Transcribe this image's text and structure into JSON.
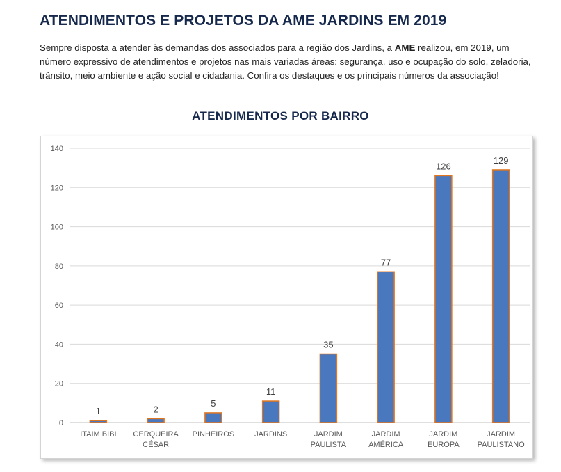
{
  "header": {
    "title": "ATENDIMENTOS E PROJETOS DA AME JARDINS EM 2019",
    "intro_before": "Sempre disposta a atender às demandas dos associados para a região dos Jardins, a ",
    "intro_brand": "AME",
    "intro_after": " realizou, em 2019, um número expressivo de atendimentos e projetos nas mais variadas áreas: segurança, uso e ocupação do solo, zeladoria, trânsito, meio ambiente e ação social e cidadania. Confira os destaques e os principais números da associação!"
  },
  "chart_data": {
    "type": "bar",
    "title": "ATENDIMENTOS POR BAIRRO",
    "categories": [
      [
        "ITAIM BIBI"
      ],
      [
        "CERQUEIRA",
        "CÉSAR"
      ],
      [
        "PINHEIROS"
      ],
      [
        "JARDINS"
      ],
      [
        "JARDIM",
        "PAULISTA"
      ],
      [
        "JARDIM",
        "AMÉRICA"
      ],
      [
        "JARDIM",
        "EUROPA"
      ],
      [
        "JARDIM",
        "PAULISTANO"
      ]
    ],
    "values": [
      1,
      2,
      5,
      11,
      35,
      77,
      126,
      129
    ],
    "ylim": [
      0,
      140
    ],
    "yticks": [
      0,
      20,
      40,
      60,
      80,
      100,
      120,
      140
    ],
    "grid": true,
    "legend": false,
    "colors": {
      "bar_fill": "#4a78bf",
      "bar_stroke": "#e2761e",
      "grid": "#d9d9d9",
      "axis": "#bfbfbf"
    }
  }
}
